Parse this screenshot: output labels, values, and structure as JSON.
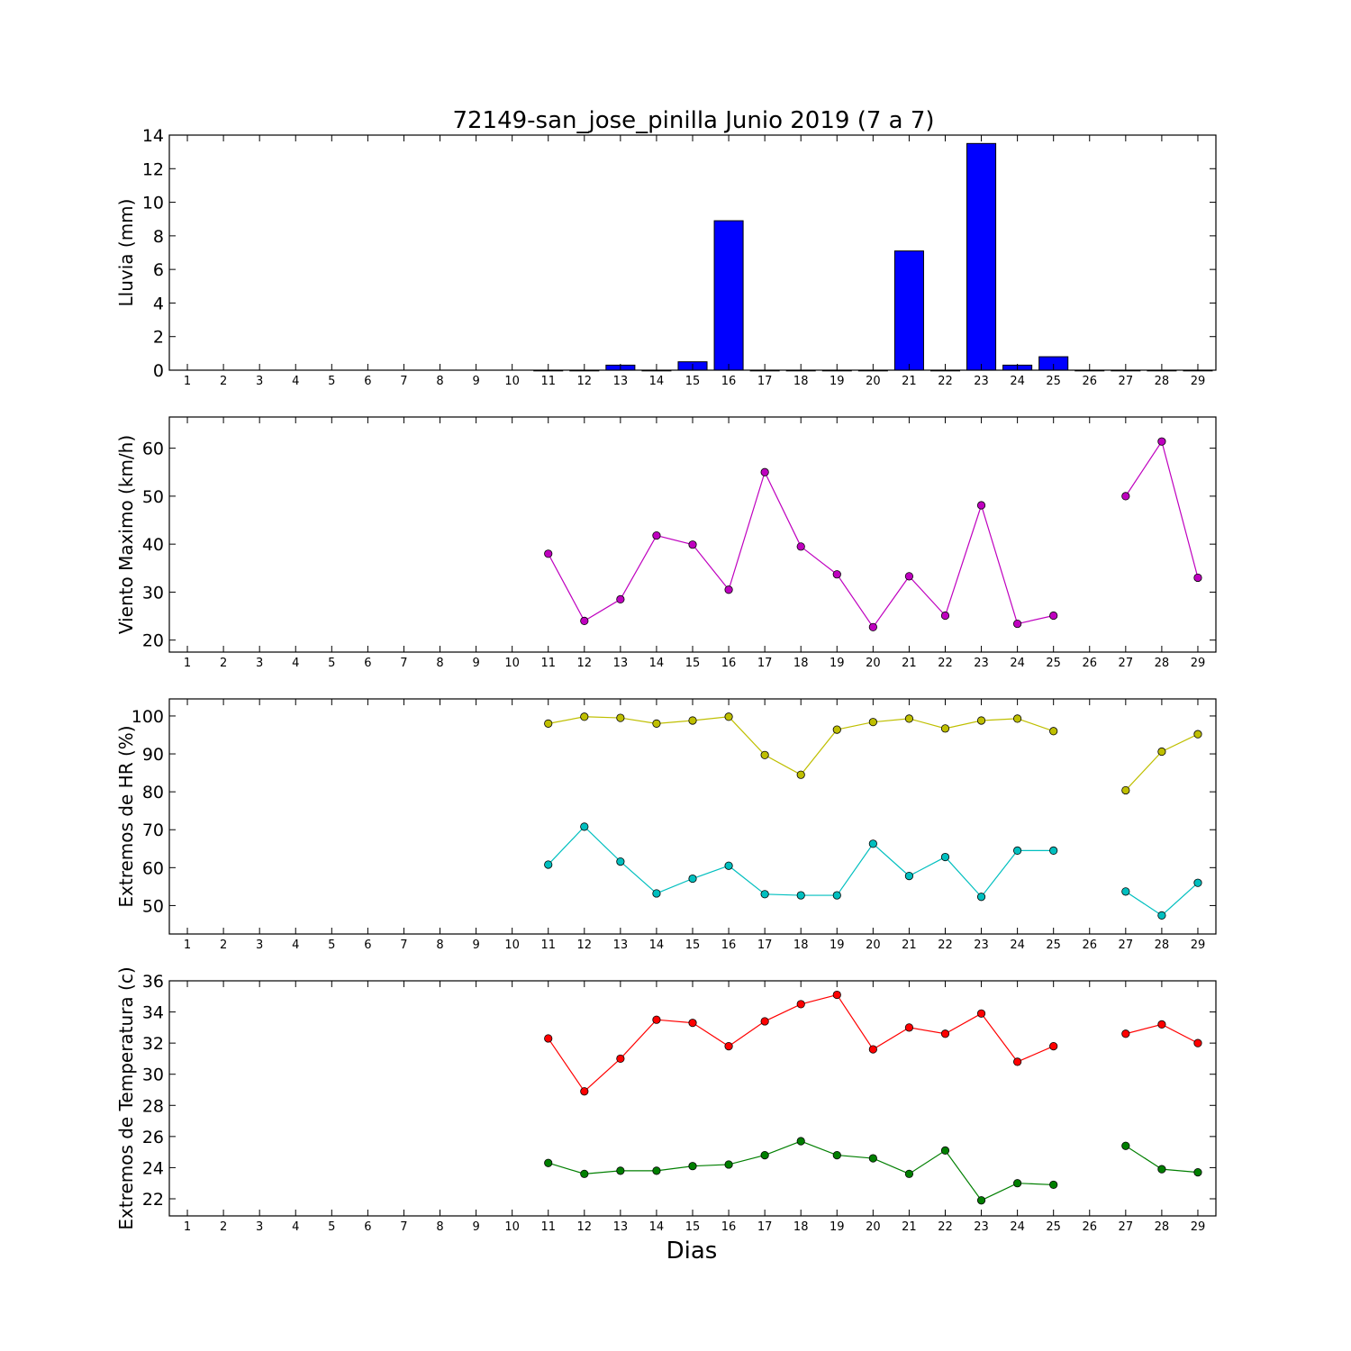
{
  "figure": {
    "title": "72149-san_jose_pinilla Junio 2019  (7 a 7)",
    "xlabel": "Dias"
  },
  "chart_data": [
    {
      "type": "bar",
      "name": "lluvia",
      "ylabel": "Lluvia (mm)",
      "xlabel": "",
      "categories": [
        1,
        2,
        3,
        4,
        5,
        6,
        7,
        8,
        9,
        10,
        11,
        12,
        13,
        14,
        15,
        16,
        17,
        18,
        19,
        20,
        21,
        22,
        23,
        24,
        25,
        26,
        27,
        28,
        29
      ],
      "xlim": [
        0.5,
        29.5
      ],
      "ylim": [
        0,
        14
      ],
      "yticks": [
        0,
        2,
        4,
        6,
        8,
        10,
        12,
        14
      ],
      "series": [
        {
          "color": "#0000ff",
          "values": [
            null,
            null,
            null,
            null,
            null,
            null,
            null,
            null,
            null,
            null,
            0,
            0,
            0.3,
            0,
            0.5,
            8.9,
            0,
            0,
            0,
            0,
            7.1,
            0,
            13.5,
            0.3,
            0.8,
            0,
            0,
            0,
            0
          ]
        }
      ]
    },
    {
      "type": "line",
      "name": "viento",
      "ylabel": "Viento Maximo (km/h)",
      "xlabel": "",
      "categories": [
        1,
        2,
        3,
        4,
        5,
        6,
        7,
        8,
        9,
        10,
        11,
        12,
        13,
        14,
        15,
        16,
        17,
        18,
        19,
        20,
        21,
        22,
        23,
        24,
        25,
        26,
        27,
        28,
        29
      ],
      "xlim": [
        0.5,
        29.5
      ],
      "ylim": [
        17.5,
        66.5
      ],
      "yticks": [
        20,
        30,
        40,
        50,
        60
      ],
      "series": [
        {
          "color": "#bf00bf",
          "values": [
            null,
            null,
            null,
            null,
            null,
            null,
            null,
            null,
            null,
            null,
            38.0,
            24.0,
            28.5,
            41.8,
            39.9,
            30.5,
            55.0,
            39.5,
            33.7,
            22.7,
            33.3,
            25.1,
            48.1,
            23.4,
            25.1,
            null,
            50.0,
            61.4,
            33.0
          ]
        }
      ]
    },
    {
      "type": "line",
      "name": "humedad",
      "ylabel": "Extremos de HR (%)",
      "xlabel": "",
      "categories": [
        1,
        2,
        3,
        4,
        5,
        6,
        7,
        8,
        9,
        10,
        11,
        12,
        13,
        14,
        15,
        16,
        17,
        18,
        19,
        20,
        21,
        22,
        23,
        24,
        25,
        26,
        27,
        28,
        29
      ],
      "xlim": [
        0.5,
        29.5
      ],
      "ylim": [
        42.5,
        104.5
      ],
      "yticks": [
        50,
        60,
        70,
        80,
        90,
        100
      ],
      "series": [
        {
          "color": "#bfbf00",
          "values": [
            null,
            null,
            null,
            null,
            null,
            null,
            null,
            null,
            null,
            null,
            98.0,
            99.8,
            99.5,
            98.0,
            98.8,
            99.8,
            89.7,
            84.5,
            96.4,
            98.4,
            99.3,
            96.7,
            98.8,
            99.3,
            96.0,
            null,
            80.4,
            90.6,
            95.2
          ]
        },
        {
          "color": "#00bfbf",
          "values": [
            null,
            null,
            null,
            null,
            null,
            null,
            null,
            null,
            null,
            null,
            60.8,
            70.8,
            61.6,
            53.2,
            57.1,
            60.5,
            53.0,
            52.7,
            52.7,
            66.3,
            57.8,
            62.8,
            52.3,
            64.5,
            64.5,
            null,
            53.7,
            47.4,
            56.0
          ]
        }
      ]
    },
    {
      "type": "line",
      "name": "temperatura",
      "ylabel": "Extremos de Temperatura (c)",
      "xlabel": "Dias",
      "categories": [
        1,
        2,
        3,
        4,
        5,
        6,
        7,
        8,
        9,
        10,
        11,
        12,
        13,
        14,
        15,
        16,
        17,
        18,
        19,
        20,
        21,
        22,
        23,
        24,
        25,
        26,
        27,
        28,
        29
      ],
      "xlim": [
        0.5,
        29.5
      ],
      "ylim": [
        20.9,
        36.0
      ],
      "yticks": [
        22,
        24,
        26,
        28,
        30,
        32,
        34,
        36
      ],
      "series": [
        {
          "color": "#ff0000",
          "values": [
            null,
            null,
            null,
            null,
            null,
            null,
            null,
            null,
            null,
            null,
            32.3,
            28.9,
            31.0,
            33.5,
            33.3,
            31.8,
            33.4,
            34.5,
            35.1,
            31.6,
            33.0,
            32.6,
            33.9,
            30.8,
            31.8,
            null,
            32.6,
            33.2,
            32.0
          ]
        },
        {
          "color": "#007f00",
          "values": [
            null,
            null,
            null,
            null,
            null,
            null,
            null,
            null,
            null,
            null,
            24.3,
            23.6,
            23.8,
            23.8,
            24.1,
            24.2,
            24.8,
            25.7,
            24.8,
            24.6,
            23.6,
            25.1,
            21.9,
            23.0,
            22.9,
            null,
            25.4,
            23.9,
            23.7
          ]
        }
      ]
    }
  ]
}
